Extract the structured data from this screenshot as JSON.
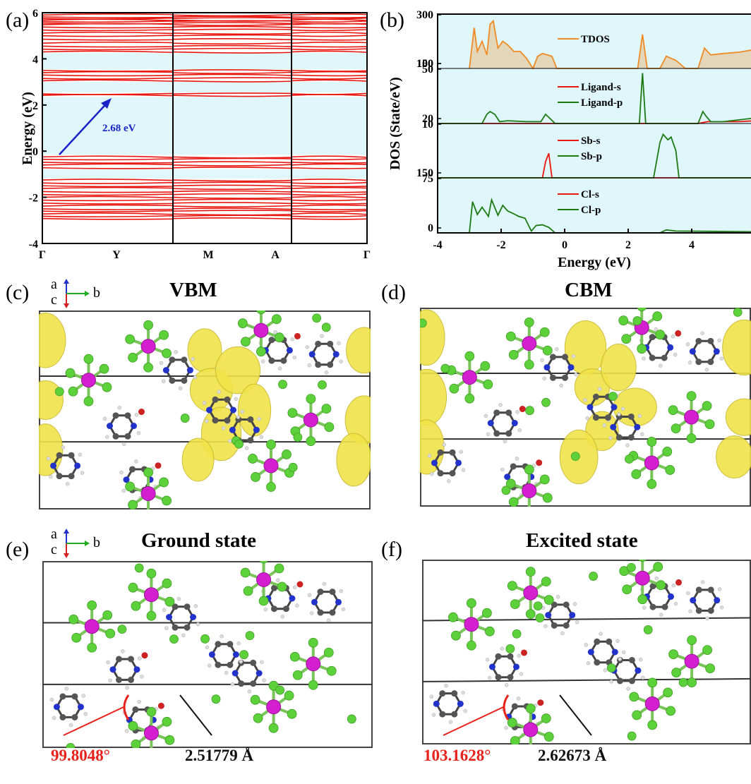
{
  "panels": {
    "a": "(a)",
    "b": "(b)",
    "c": "(c)",
    "d": "(d)",
    "e": "(e)",
    "f": "(f)"
  },
  "axes_indicator": {
    "a": "a",
    "b": "b",
    "c": "c"
  },
  "titles": {
    "c": "VBM",
    "d": "CBM",
    "e": "Ground state",
    "f": "Excited state"
  },
  "measurements": {
    "e_angle": "99.8048°",
    "e_bond": "2.51779 Å",
    "f_angle": "103.1628°",
    "f_bond": "2.62673 Å"
  },
  "colors": {
    "band": "#e8160f",
    "band_bg": "#dff6fa",
    "tdos": "#f08a24",
    "green": "#1c7a12",
    "red": "#e8160f",
    "blue_arrow": "#1a23c8",
    "sb_atom": "#d41fd0",
    "cl_atom": "#5cd13a",
    "n_atom": "#2233cc",
    "c_atom": "#555555",
    "o_atom": "#cc2222",
    "isosurface": "#f0e44a"
  },
  "chart_data": [
    {
      "type": "line",
      "panel": "a",
      "ylabel": "Energy (eV)",
      "ylim": [
        -4,
        6
      ],
      "yticks": [
        "6",
        "4",
        "2",
        "0",
        "-2",
        "-4"
      ],
      "kpath": [
        "Γ",
        "Y",
        "M",
        "A",
        "Γ"
      ],
      "gap_annotation": "2.68 eV",
      "series": [
        {
          "name": "",
          "values": [
            4.3,
            4.42,
            4.55,
            4.68,
            4.85,
            5.0,
            5.12,
            5.25,
            5.38,
            5.48,
            5.55,
            5.62,
            5.68,
            5.75,
            5.82,
            5.9
          ]
        },
        {
          "name": "",
          "values": [
            3.05,
            3.15,
            3.3,
            3.4,
            3.5
          ]
        },
        {
          "name": "",
          "values": [
            2.42,
            2.48
          ]
        },
        {
          "name": "",
          "values": [
            -0.25,
            -0.35,
            -0.48,
            -0.6,
            -0.72
          ]
        },
        {
          "name": "",
          "values": [
            -1.25,
            -1.38,
            -1.5,
            -1.62,
            -1.75,
            -1.88,
            -2.0,
            -2.12,
            -2.25,
            -2.38,
            -2.5,
            -2.6,
            -2.72,
            -2.82,
            -2.92
          ]
        }
      ]
    },
    {
      "type": "area",
      "panel": "b",
      "xlabel": "Energy (eV)",
      "ylabel": "DOS (State/eV)",
      "xlim": [
        -4,
        6
      ],
      "xticks": [
        "-4",
        "-2",
        "0",
        "2",
        "4",
        "6"
      ],
      "subplots": [
        {
          "yticks": [
            "300",
            "150",
            "100"
          ],
          "series": [
            {
              "name": "TDOS",
              "x": [
                -3.0,
                -2.85,
                -2.75,
                -2.6,
                -2.45,
                -2.35,
                -2.25,
                -2.1,
                -1.95,
                -1.8,
                -1.6,
                -1.4,
                -1.2,
                -1.0,
                -0.85,
                -0.7,
                -0.55,
                -0.4,
                -0.25,
                0,
                2.3,
                2.45,
                2.6,
                3.0,
                3.2,
                3.5,
                3.8,
                4.2,
                4.4,
                4.6,
                5.0,
                5.5,
                6.0
              ],
              "y": [
                100,
                160,
                125,
                140,
                120,
                165,
                170,
                130,
                140,
                135,
                125,
                125,
                115,
                100,
                118,
                122,
                120,
                118,
                100,
                100,
                100,
                150,
                100,
                100,
                118,
                112,
                100,
                100,
                130,
                120,
                122,
                124,
                128
              ]
            }
          ]
        },
        {
          "yticks": [
            "50",
            "20"
          ],
          "series": [
            {
              "name": "Ligand-s",
              "x": [
                -4,
                4.2,
                4.5,
                5.5,
                6.0
              ],
              "y": [
                20,
                20,
                22,
                22,
                23
              ]
            },
            {
              "name": "Ligand-p",
              "x": [
                -4,
                -2.6,
                -2.45,
                -2.35,
                -2.2,
                -2.05,
                -1.8,
                -1.2,
                -0.75,
                -0.6,
                -0.45,
                -0.3,
                0,
                2.35,
                2.45,
                2.55,
                2.7,
                4.2,
                4.35,
                4.45,
                4.6,
                5.0,
                6.0
              ],
              "y": [
                20,
                20,
                30,
                33,
                30,
                22,
                23,
                22,
                22,
                30,
                25,
                20,
                20,
                20,
                75,
                20,
                20,
                20,
                33,
                28,
                22,
                22,
                26
              ]
            }
          ]
        },
        {
          "yticks": [
            "10",
            "150"
          ],
          "series": [
            {
              "name": "Sb-s",
              "x": [
                -4,
                -0.7,
                -0.6,
                -0.5,
                -0.4,
                6.0
              ],
              "y": [
                0,
                0,
                6,
                9,
                0,
                0
              ]
            },
            {
              "name": "Sb-p",
              "x": [
                -4,
                2.8,
                3.0,
                3.1,
                3.25,
                3.35,
                3.5,
                3.6,
                6.0
              ],
              "y": [
                0,
                0,
                13,
                16,
                14,
                15,
                10,
                0,
                0
              ]
            }
          ]
        },
        {
          "yticks": [
            "75",
            "0"
          ],
          "series": [
            {
              "name": "Cl-s",
              "x": [
                -4,
                6.0
              ],
              "y": [
                0,
                0
              ]
            },
            {
              "name": "Cl-p",
              "x": [
                -4,
                -3.0,
                -2.9,
                -2.75,
                -2.6,
                -2.4,
                -2.3,
                -2.1,
                -1.95,
                -1.8,
                -1.6,
                -1.45,
                -1.25,
                -1.05,
                -0.9,
                -0.7,
                -0.5,
                -0.3,
                0,
                3.0,
                3.2,
                3.5,
                6.0
              ],
              "y": [
                0,
                0,
                85,
                50,
                70,
                45,
                90,
                48,
                75,
                60,
                52,
                45,
                40,
                5,
                20,
                22,
                15,
                0,
                0,
                0,
                8,
                5,
                3
              ]
            }
          ]
        }
      ]
    }
  ]
}
